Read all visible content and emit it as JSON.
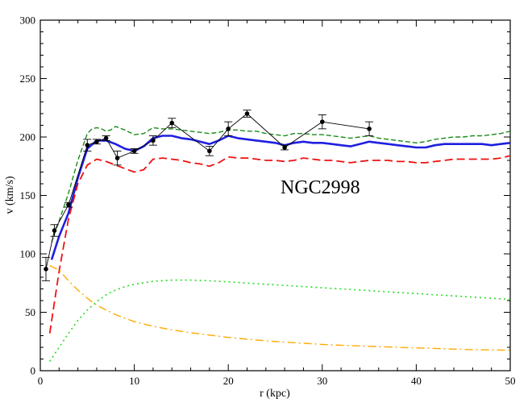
{
  "chart_data": {
    "type": "line",
    "title": "",
    "annotation": "NGC2998",
    "xlabel": "r (kpc)",
    "ylabel": "v (km/s)",
    "xlim": [
      0,
      50
    ],
    "ylim": [
      0,
      300
    ],
    "xticks": [
      0,
      10,
      20,
      30,
      40,
      50
    ],
    "yticks": [
      0,
      50,
      100,
      150,
      200,
      250,
      300
    ],
    "grid": false,
    "legend": "none",
    "observed": {
      "points": [
        {
          "x": 0.6,
          "y": 87,
          "err": 10
        },
        {
          "x": 1.5,
          "y": 120,
          "err": 5
        },
        {
          "x": 3.0,
          "y": 142,
          "err": 2
        },
        {
          "x": 5.0,
          "y": 193,
          "err": 5
        },
        {
          "x": 6.0,
          "y": 196,
          "err": 2
        },
        {
          "x": 7.0,
          "y": 199,
          "err": 2
        },
        {
          "x": 8.2,
          "y": 182,
          "err": 6
        },
        {
          "x": 10.0,
          "y": 188,
          "err": 2
        },
        {
          "x": 12.0,
          "y": 197,
          "err": 4
        },
        {
          "x": 14.0,
          "y": 212,
          "err": 4
        },
        {
          "x": 18.0,
          "y": 188,
          "err": 4
        },
        {
          "x": 20.0,
          "y": 207,
          "err": 6
        },
        {
          "x": 22.0,
          "y": 220,
          "err": 3
        },
        {
          "x": 26.0,
          "y": 191,
          "err": 2
        },
        {
          "x": 30.0,
          "y": 213,
          "err": 6
        },
        {
          "x": 35.0,
          "y": 207,
          "err": 6
        }
      ],
      "color": "#000000"
    },
    "series": [
      {
        "style": "solid-thick",
        "color": "#1f1fe0",
        "x": [
          1.2,
          2,
          3,
          4,
          5,
          6,
          7,
          8,
          9,
          10,
          11,
          12,
          13,
          14,
          15,
          16,
          17,
          18,
          19,
          20,
          21,
          22,
          23,
          24,
          25,
          26,
          27,
          28,
          29,
          30,
          31,
          32,
          33,
          34,
          35,
          36,
          37,
          38,
          39,
          40,
          41,
          42,
          43,
          44,
          45,
          46,
          47,
          48,
          49,
          50
        ],
        "y": [
          95,
          115,
          135,
          165,
          190,
          197,
          197,
          194,
          190,
          188,
          192,
          199,
          201,
          201,
          199,
          198,
          196,
          194,
          197,
          201,
          199,
          198,
          197,
          196,
          195,
          193,
          195,
          196,
          195,
          195,
          194,
          193,
          192,
          194,
          196,
          195,
          194,
          193,
          192,
          191,
          191,
          193,
          194,
          194,
          194,
          194,
          194,
          193,
          194,
          195
        ]
      },
      {
        "style": "dashed",
        "color": "#1a8c1a",
        "x": [
          1.2,
          2,
          3,
          4,
          5,
          5.5,
          6,
          6.5,
          7,
          7.5,
          8,
          9,
          10,
          11,
          12,
          13,
          14,
          15,
          16,
          17,
          18,
          19,
          20,
          21,
          22,
          23,
          24,
          25,
          26,
          27,
          28,
          29,
          30,
          31,
          32,
          33,
          34,
          35,
          36,
          37,
          38,
          39,
          40,
          41,
          42,
          43,
          44,
          45,
          46,
          47,
          48,
          49,
          50
        ],
        "y": [
          110,
          128,
          152,
          180,
          203,
          207,
          208,
          207,
          205,
          206,
          209,
          206,
          202,
          203,
          208,
          207,
          207,
          206,
          205,
          204,
          203,
          204,
          206,
          206,
          205,
          205,
          203,
          202,
          201,
          203,
          203,
          202,
          202,
          201,
          200,
          199,
          200,
          201,
          199,
          198,
          197,
          196,
          195,
          196,
          198,
          199,
          200,
          200,
          201,
          201,
          202,
          203,
          205
        ]
      },
      {
        "style": "dashed-long",
        "color": "#ee1111",
        "x": [
          1.0,
          2,
          3,
          4,
          5,
          6,
          7,
          8,
          9,
          10,
          11,
          12,
          13,
          14,
          15,
          16,
          17,
          18,
          19,
          20,
          21,
          22,
          23,
          24,
          25,
          26,
          27,
          28,
          29,
          30,
          31,
          32,
          33,
          34,
          35,
          36,
          37,
          38,
          39,
          40,
          41,
          42,
          43,
          44,
          45,
          46,
          47,
          48,
          49,
          50
        ],
        "y": [
          32,
          85,
          130,
          160,
          176,
          181,
          179,
          176,
          173,
          170,
          172,
          181,
          182,
          181,
          180,
          178,
          177,
          175,
          178,
          183,
          182,
          182,
          181,
          180,
          180,
          179,
          180,
          182,
          181,
          180,
          180,
          179,
          178,
          179,
          180,
          180,
          180,
          179,
          179,
          178,
          178,
          179,
          180,
          181,
          181,
          181,
          181,
          181,
          182,
          184
        ]
      },
      {
        "style": "dotted",
        "color": "#22dd22",
        "x": [
          1.0,
          2,
          3,
          4,
          5,
          6,
          7,
          8,
          9,
          10,
          12,
          14,
          16,
          18,
          20,
          22,
          24,
          26,
          28,
          30,
          32,
          34,
          36,
          38,
          40,
          42,
          44,
          46,
          48,
          50
        ],
        "y": [
          8,
          20,
          32,
          43,
          52,
          59,
          65,
          69,
          72,
          74,
          76.5,
          77.5,
          77.5,
          77,
          76,
          75,
          74,
          73,
          72,
          71,
          70,
          69,
          68,
          67,
          66,
          65,
          64,
          63,
          62,
          61
        ]
      },
      {
        "style": "dash-dot",
        "color": "#ffaa00",
        "x": [
          1.0,
          2,
          3,
          4,
          5,
          6,
          7,
          8,
          9,
          10,
          12,
          14,
          16,
          18,
          20,
          22,
          24,
          26,
          28,
          30,
          32,
          34,
          36,
          38,
          40,
          42,
          44,
          46,
          48,
          50
        ],
        "y": [
          90,
          86,
          77,
          69,
          62,
          56,
          52,
          48,
          45,
          42,
          38,
          35,
          32.5,
          30.5,
          28.5,
          27,
          25.5,
          24.5,
          23.5,
          22.5,
          21.8,
          21.2,
          20.6,
          20,
          19.5,
          19,
          18.5,
          18,
          17.8,
          17.5
        ]
      }
    ]
  }
}
